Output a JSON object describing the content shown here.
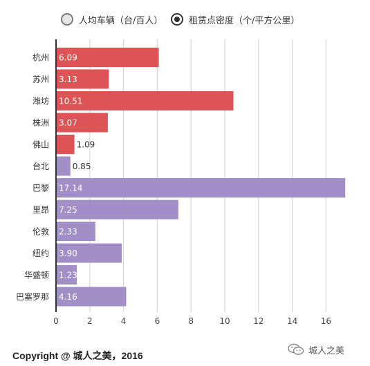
{
  "legend": {
    "items": [
      {
        "label": "人均车辆（台/百人）",
        "selected": false
      },
      {
        "label": "租赁点密度（个/平方公里）",
        "selected": true
      }
    ]
  },
  "chart_data": {
    "type": "bar",
    "orientation": "horizontal",
    "categories": [
      "杭州",
      "苏州",
      "潍坊",
      "株洲",
      "佛山",
      "台北",
      "巴黎",
      "里昂",
      "伦敦",
      "纽约",
      "华盛顿",
      "巴塞罗那"
    ],
    "values": [
      6.09,
      3.13,
      10.51,
      3.07,
      1.09,
      0.85,
      17.14,
      7.25,
      2.33,
      3.9,
      1.23,
      4.16
    ],
    "value_labels": [
      "6.09",
      "3.13",
      "10.51",
      "3.07",
      "1.09",
      "0.85",
      "17.14",
      "7.25",
      "2.33",
      "3.90",
      "1.23",
      "4.16"
    ],
    "bar_colors": [
      "#de5356",
      "#de5356",
      "#de5356",
      "#de5356",
      "#de5356",
      "#a38fc7",
      "#a38fc7",
      "#a38fc7",
      "#a38fc7",
      "#a38fc7",
      "#a38fc7",
      "#a38fc7"
    ],
    "x_ticks": [
      "0",
      "2",
      "4",
      "6",
      "8",
      "10",
      "12",
      "14",
      "16"
    ],
    "xlim": [
      0,
      17.5
    ],
    "grid": true
  },
  "footer": {
    "copyright": "Copyright @ 城人之美，2016",
    "brand": "城人之美",
    "brand_icon": "wechat-icon"
  }
}
